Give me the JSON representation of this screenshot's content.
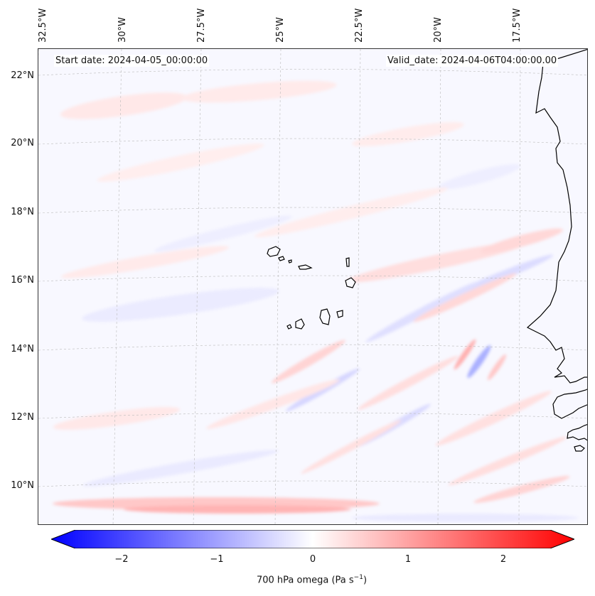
{
  "map": {
    "start_date": "Start date: 2024-04-05_00:00:00",
    "valid_date": "Valid_date: 2024-04-06T04:00:00.00",
    "longitude_labels": [
      "32.5°W",
      "30°W",
      "27.5°W",
      "25°W",
      "22.5°W",
      "20°W",
      "17.5°W"
    ],
    "latitude_labels": [
      "22°N",
      "20°N",
      "18°N",
      "16°N",
      "14°N",
      "12°N",
      "10°N"
    ],
    "field": "700 hPa omega",
    "region": "Cape Verde Islands and West African coast"
  },
  "colorbar": {
    "label_prefix": "700 hPa omega (Pa s",
    "label_exp": "−1",
    "label_suffix": ")",
    "ticks": [
      "−2",
      "−1",
      "0",
      "1",
      "2"
    ],
    "tick_values": [
      -2,
      -1,
      0,
      1,
      2
    ],
    "range": [
      -2.75,
      2.75
    ],
    "colormap": "bwr",
    "low_color": "#0000ff",
    "mid_color": "#ffffff",
    "high_color": "#ff0000"
  },
  "colors": {
    "coastline": "#000000",
    "gridline": "#bbbbbb"
  }
}
